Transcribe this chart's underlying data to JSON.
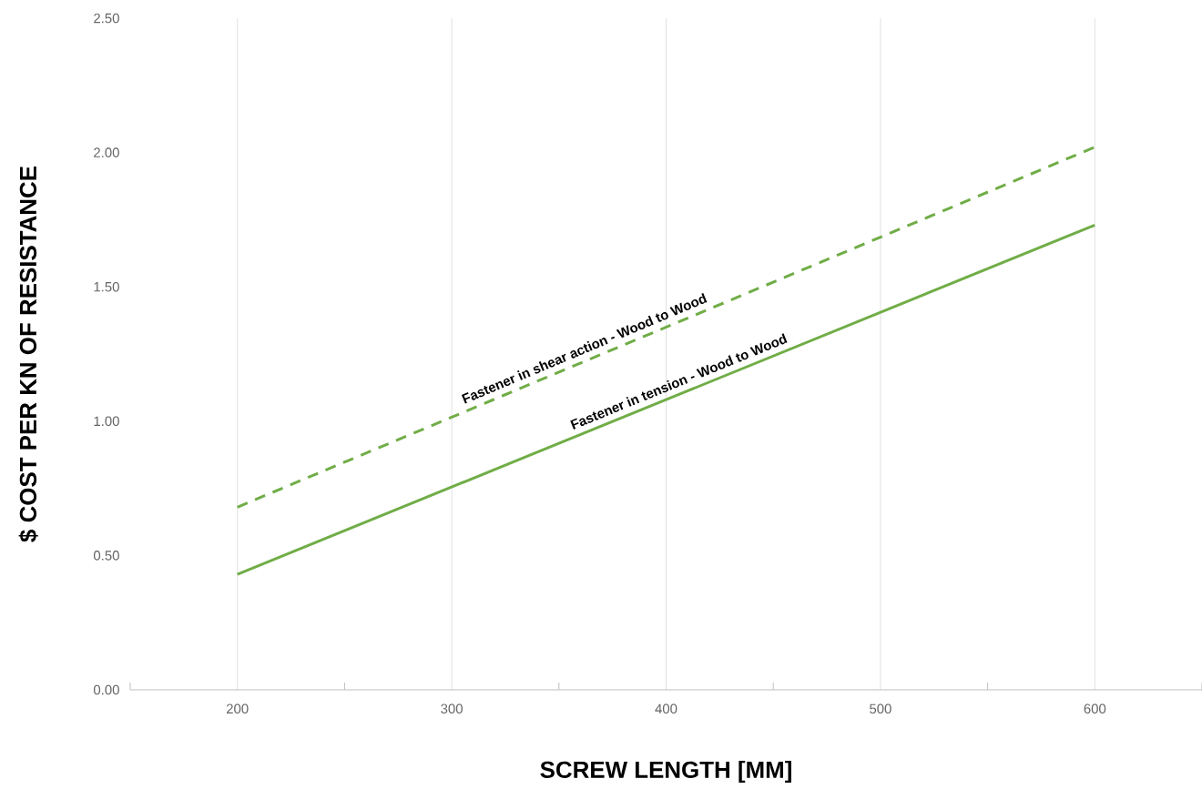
{
  "chart_data": {
    "type": "line",
    "xlabel": "SCREW LENGTH [MM]",
    "ylabel": "$ COST PER KN OF RESISTANCE",
    "x": [
      200,
      600
    ],
    "series": [
      {
        "name": "Fastener in shear action - Wood to Wood",
        "color": "#70ad47",
        "line_style": "dashed",
        "values": [
          0.68,
          2.02
        ]
      },
      {
        "name": "Fastener in tension - Wood to Wood",
        "color": "#70ad47",
        "line_style": "solid",
        "values": [
          0.43,
          1.73
        ]
      }
    ],
    "xlim": [
      150,
      650
    ],
    "ylim": [
      0,
      2.5
    ],
    "xticks": [
      {
        "value": 150,
        "label": null
      },
      200,
      {
        "value": 250,
        "label": null
      },
      300,
      {
        "value": 350,
        "label": null
      },
      400,
      {
        "value": 450,
        "label": null
      },
      500,
      {
        "value": 550,
        "label": null
      },
      600,
      {
        "value": 650,
        "label": null
      }
    ],
    "yticks": [
      {
        "value": 0,
        "label": "0.00"
      },
      {
        "value": 0.5,
        "label": "0.50"
      },
      {
        "value": 1,
        "label": "1.00"
      },
      {
        "value": 1.5,
        "label": "1.50"
      },
      {
        "value": 2,
        "label": "2.00"
      },
      {
        "value": 2.5,
        "label": "2.50"
      }
    ],
    "grid": "x"
  }
}
